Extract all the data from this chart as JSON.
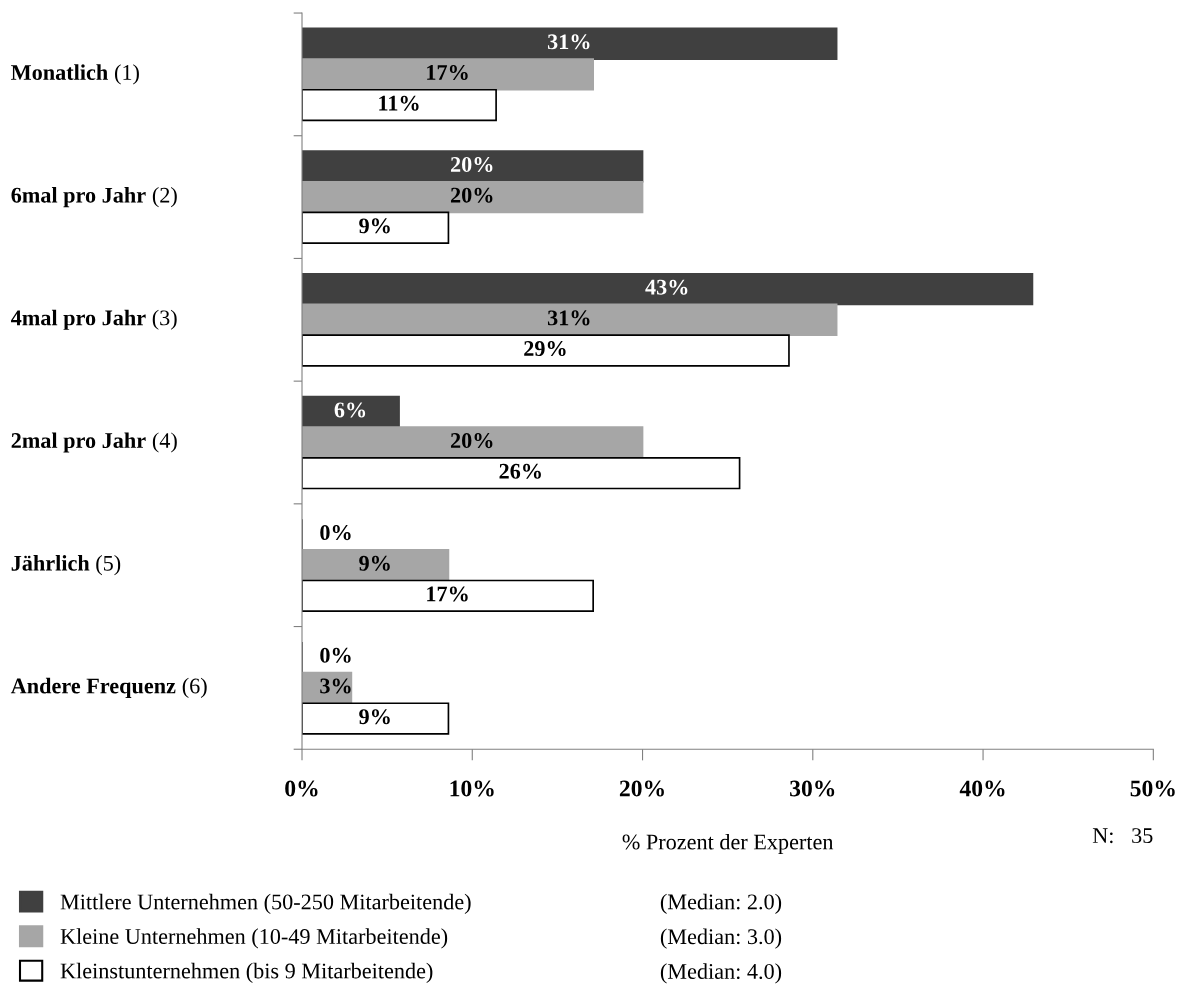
{
  "chart_data": {
    "type": "bar",
    "orientation": "horizontal",
    "categories": [
      "Monatlich (1)",
      "6mal pro Jahr (2)",
      "4mal pro Jahr (3)",
      "2mal pro Jahr (4)",
      "Jährlich (5)",
      "Andere Frequenz (6)"
    ],
    "series": [
      {
        "name": "Mittlere Unternehmen (50-250 Mitarbeitende)",
        "color": "#404040",
        "values": [
          31.4,
          20.0,
          42.9,
          5.7,
          0,
          0
        ],
        "value_labels": [
          "31%",
          "20%",
          "43%",
          "6%",
          "0%",
          "0%"
        ]
      },
      {
        "name": "Kleine Unternehmen (10-49 Mitarbeitende)",
        "color": "#a6a6a6",
        "values": [
          17.1,
          20.0,
          31.4,
          20.0,
          8.6,
          2.9
        ],
        "value_labels": [
          "17%",
          "20%",
          "31%",
          "20%",
          "9%",
          "3%"
        ]
      },
      {
        "name": "Kleinstunternehmen (bis 9 Mitarbeitende)",
        "color": "#ffffff",
        "values": [
          11.4,
          8.6,
          28.6,
          25.7,
          17.1,
          8.6
        ],
        "value_labels": [
          "11%",
          "9%",
          "29%",
          "26%",
          "17%",
          "9%"
        ]
      }
    ],
    "xlim": [
      0,
      50
    ],
    "xticks": [
      {
        "value": 0,
        "label": "0%"
      },
      {
        "value": 10,
        "label": "10%"
      },
      {
        "value": 20,
        "label": "20%"
      },
      {
        "value": 30,
        "label": "30%"
      },
      {
        "value": 40,
        "label": "40%"
      },
      {
        "value": 50,
        "label": "50%"
      }
    ],
    "xlabel": "% Prozent der Experten",
    "annotations": [
      "(Median: 2.0)",
      "(Median: 3.0)",
      "(Median: 4.0)",
      "N:   35"
    ],
    "legend": "bottom",
    "grid": false
  }
}
